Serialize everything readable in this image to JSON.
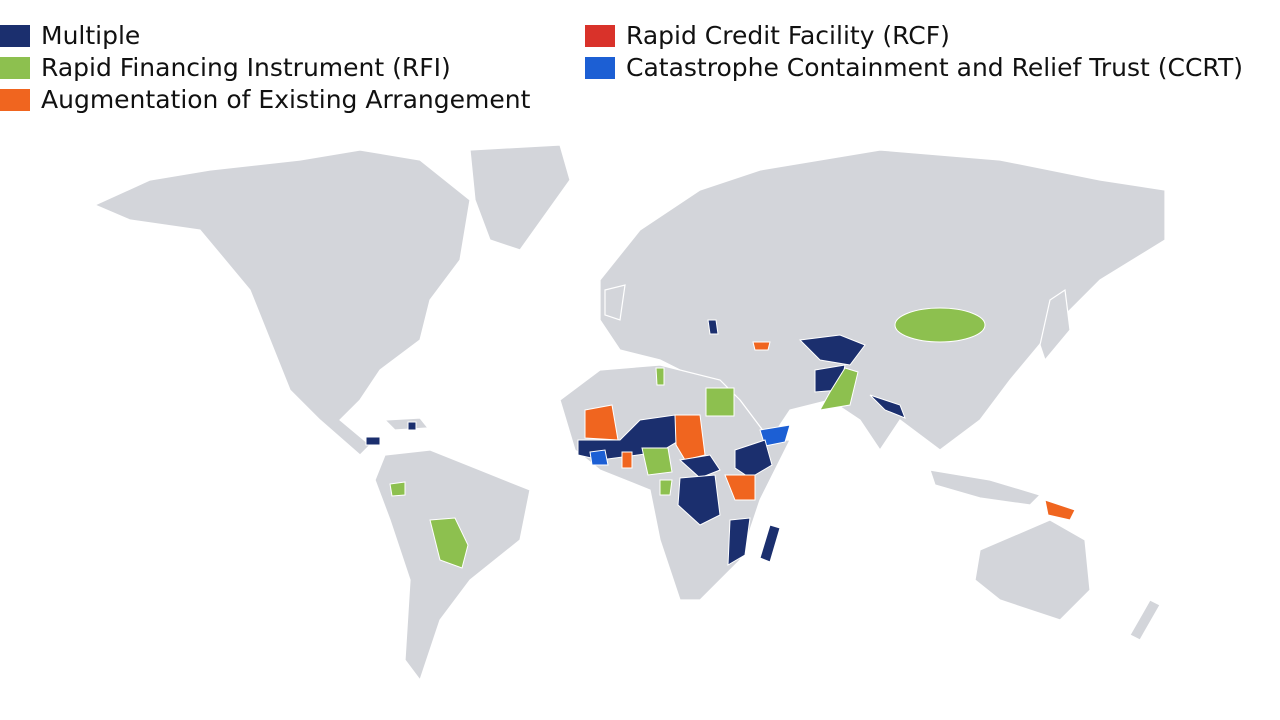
{
  "legend": {
    "items": [
      {
        "label": "Multiple",
        "color": "#1b2f6e"
      },
      {
        "label": "Rapid Financing Instrument (RFI)",
        "color": "#8dc04f"
      },
      {
        "label": "Augmentation of Existing Arrangement",
        "color": "#f0651f"
      },
      {
        "label": "Rapid Credit Facility (RCF)",
        "color": "#d9322a"
      },
      {
        "label": "Catastrophe Containment and Relief Trust (CCRT)",
        "color": "#1c5fd4"
      }
    ]
  }
}
